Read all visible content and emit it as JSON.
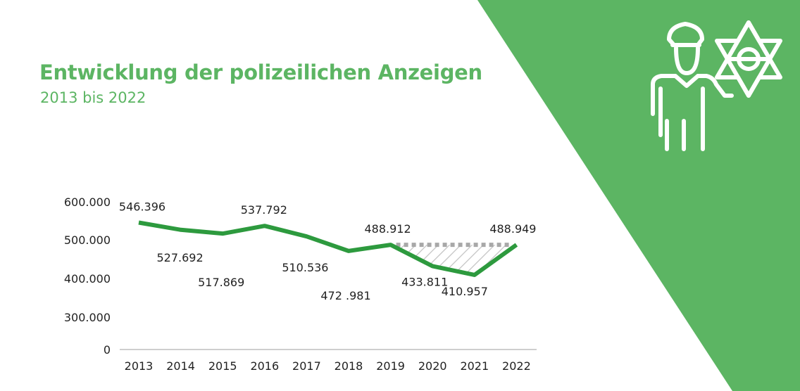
{
  "page": {
    "accent_color": "#5cb563",
    "line_color": "#2d9a3e",
    "title": "Entwicklung der polizeilichen Anzeigen",
    "subtitle": "2013 bis 2022",
    "icon": "police-officer-with-star-badge-icon"
  },
  "chart_data": {
    "type": "line",
    "title": "Entwicklung der polizeilichen Anzeigen",
    "subtitle": "2013 bis 2022",
    "xlabel": "",
    "ylabel": "",
    "categories": [
      "2013",
      "2014",
      "2015",
      "2016",
      "2017",
      "2018",
      "2019",
      "2020",
      "2021",
      "2022"
    ],
    "series": [
      {
        "name": "Anzeigen",
        "values": [
          546396,
          527692,
          517869,
          537792,
          510536,
          472981,
          488912,
          433811,
          410957,
          488949
        ],
        "labels": [
          "546.396",
          "527.692",
          "517.869",
          "537.792",
          "510.536",
          "472 .981",
          "488.912",
          "433.811",
          "410.957",
          "488.949"
        ]
      }
    ],
    "reference_line": {
      "from": "2019",
      "to": "2022",
      "value": 488912,
      "style": "dotted-gray",
      "shaded_gap": true
    },
    "yticks": [
      0,
      300000,
      400000,
      500000,
      600000
    ],
    "ytick_labels": [
      "0",
      "300.000",
      "400.000",
      "500.000",
      "600.000"
    ],
    "ylim": [
      0,
      600000
    ],
    "axis_break": true,
    "grid": false,
    "legend": "none"
  }
}
